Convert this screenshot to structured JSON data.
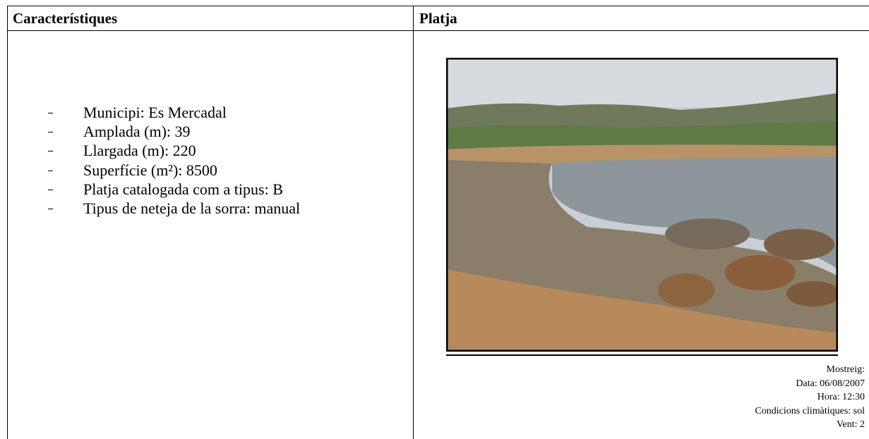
{
  "header": {
    "col1": "Característiques",
    "col2": "Platja"
  },
  "list": [
    "Municipi: Es Mercadal",
    "Amplada (m): 39",
    "Llargada (m): 220",
    "Superfície (m²): 8500",
    "Platja catalogada com a tipus: B",
    "Tipus de neteja de la sorra: manual"
  ],
  "caption": [
    "Mostreig:",
    "Data: 06/08/2007",
    "Hora: 12:30",
    "Condicions climàtiques: sol",
    "Vent: 2"
  ]
}
